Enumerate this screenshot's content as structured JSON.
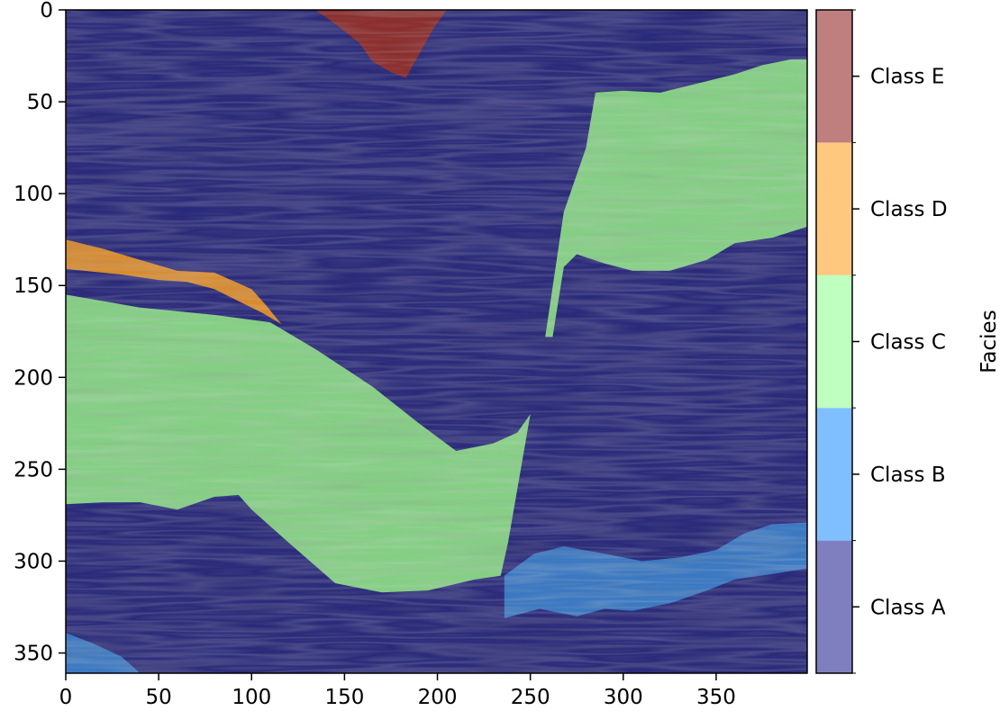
{
  "chart_data": {
    "type": "heatmap",
    "title": "",
    "xlabel": "",
    "ylabel": "",
    "xlim": [
      0,
      399
    ],
    "ylim": [
      361,
      0
    ],
    "x_ticks": [
      0,
      50,
      100,
      150,
      200,
      250,
      300,
      350
    ],
    "y_ticks": [
      0,
      50,
      100,
      150,
      200,
      250,
      300,
      350
    ],
    "background_class": "Class A",
    "colorbar": {
      "label": "Facies",
      "classes": [
        {
          "name": "Class A",
          "color": "#7f7fbf"
        },
        {
          "name": "Class B",
          "color": "#7fbfff"
        },
        {
          "name": "Class C",
          "color": "#bfffbf"
        },
        {
          "name": "Class D",
          "color": "#ffc87f"
        },
        {
          "name": "Class E",
          "color": "#bf7f7f"
        }
      ]
    },
    "overlay_colors": {
      "Class A": "#2a2a7a",
      "Class B": "#3a78c2",
      "Class C": "#84cf84",
      "Class D": "#d98a2c",
      "Class E": "#8b2e2e"
    },
    "regions": [
      {
        "class": "Class E",
        "points": [
          [
            134,
            0
          ],
          [
            205,
            0
          ],
          [
            198,
            10
          ],
          [
            188,
            28
          ],
          [
            183,
            37
          ],
          [
            175,
            34
          ],
          [
            165,
            28
          ],
          [
            158,
            18
          ],
          [
            148,
            10
          ],
          [
            140,
            4
          ]
        ]
      },
      {
        "class": "Class D",
        "points": [
          [
            0,
            125
          ],
          [
            20,
            130
          ],
          [
            40,
            136
          ],
          [
            60,
            142
          ],
          [
            80,
            143
          ],
          [
            100,
            152
          ],
          [
            108,
            161
          ],
          [
            116,
            171
          ],
          [
            106,
            165
          ],
          [
            92,
            158
          ],
          [
            80,
            152
          ],
          [
            65,
            148
          ],
          [
            50,
            147
          ],
          [
            30,
            144
          ],
          [
            10,
            142
          ],
          [
            0,
            141
          ]
        ]
      },
      {
        "class": "Class C",
        "points": [
          [
            0,
            155
          ],
          [
            40,
            162
          ],
          [
            80,
            166
          ],
          [
            110,
            170
          ],
          [
            135,
            185
          ],
          [
            165,
            205
          ],
          [
            190,
            225
          ],
          [
            210,
            240
          ],
          [
            230,
            236
          ],
          [
            243,
            230
          ],
          [
            250,
            220
          ],
          [
            244,
            255
          ],
          [
            238,
            290
          ],
          [
            234,
            308
          ],
          [
            220,
            310
          ],
          [
            195,
            316
          ],
          [
            170,
            317
          ],
          [
            145,
            312
          ],
          [
            120,
            290
          ],
          [
            100,
            272
          ],
          [
            93,
            264
          ],
          [
            80,
            265
          ],
          [
            60,
            272
          ],
          [
            40,
            268
          ],
          [
            20,
            268
          ],
          [
            0,
            269
          ]
        ]
      },
      {
        "class": "Class C",
        "points": [
          [
            285,
            45
          ],
          [
            300,
            44
          ],
          [
            320,
            45
          ],
          [
            340,
            40
          ],
          [
            360,
            35
          ],
          [
            375,
            30
          ],
          [
            390,
            27
          ],
          [
            399,
            27
          ],
          [
            399,
            118
          ],
          [
            380,
            124
          ],
          [
            360,
            127
          ],
          [
            345,
            136
          ],
          [
            325,
            142
          ],
          [
            305,
            142
          ],
          [
            290,
            138
          ],
          [
            275,
            133
          ],
          [
            268,
            140
          ],
          [
            262,
            178
          ],
          [
            258,
            178
          ],
          [
            268,
            110
          ],
          [
            280,
            75
          ]
        ]
      },
      {
        "class": "Class B",
        "points": [
          [
            236,
            308
          ],
          [
            252,
            296
          ],
          [
            268,
            292
          ],
          [
            290,
            296
          ],
          [
            310,
            300
          ],
          [
            330,
            298
          ],
          [
            350,
            294
          ],
          [
            365,
            285
          ],
          [
            380,
            280
          ],
          [
            399,
            279
          ],
          [
            399,
            304
          ],
          [
            380,
            307
          ],
          [
            360,
            310
          ],
          [
            345,
            316
          ],
          [
            325,
            323
          ],
          [
            305,
            327
          ],
          [
            290,
            326
          ],
          [
            275,
            330
          ],
          [
            255,
            326
          ],
          [
            236,
            331
          ]
        ]
      },
      {
        "class": "Class B",
        "points": [
          [
            0,
            339
          ],
          [
            15,
            345
          ],
          [
            30,
            352
          ],
          [
            40,
            361
          ],
          [
            0,
            361
          ]
        ]
      }
    ]
  }
}
